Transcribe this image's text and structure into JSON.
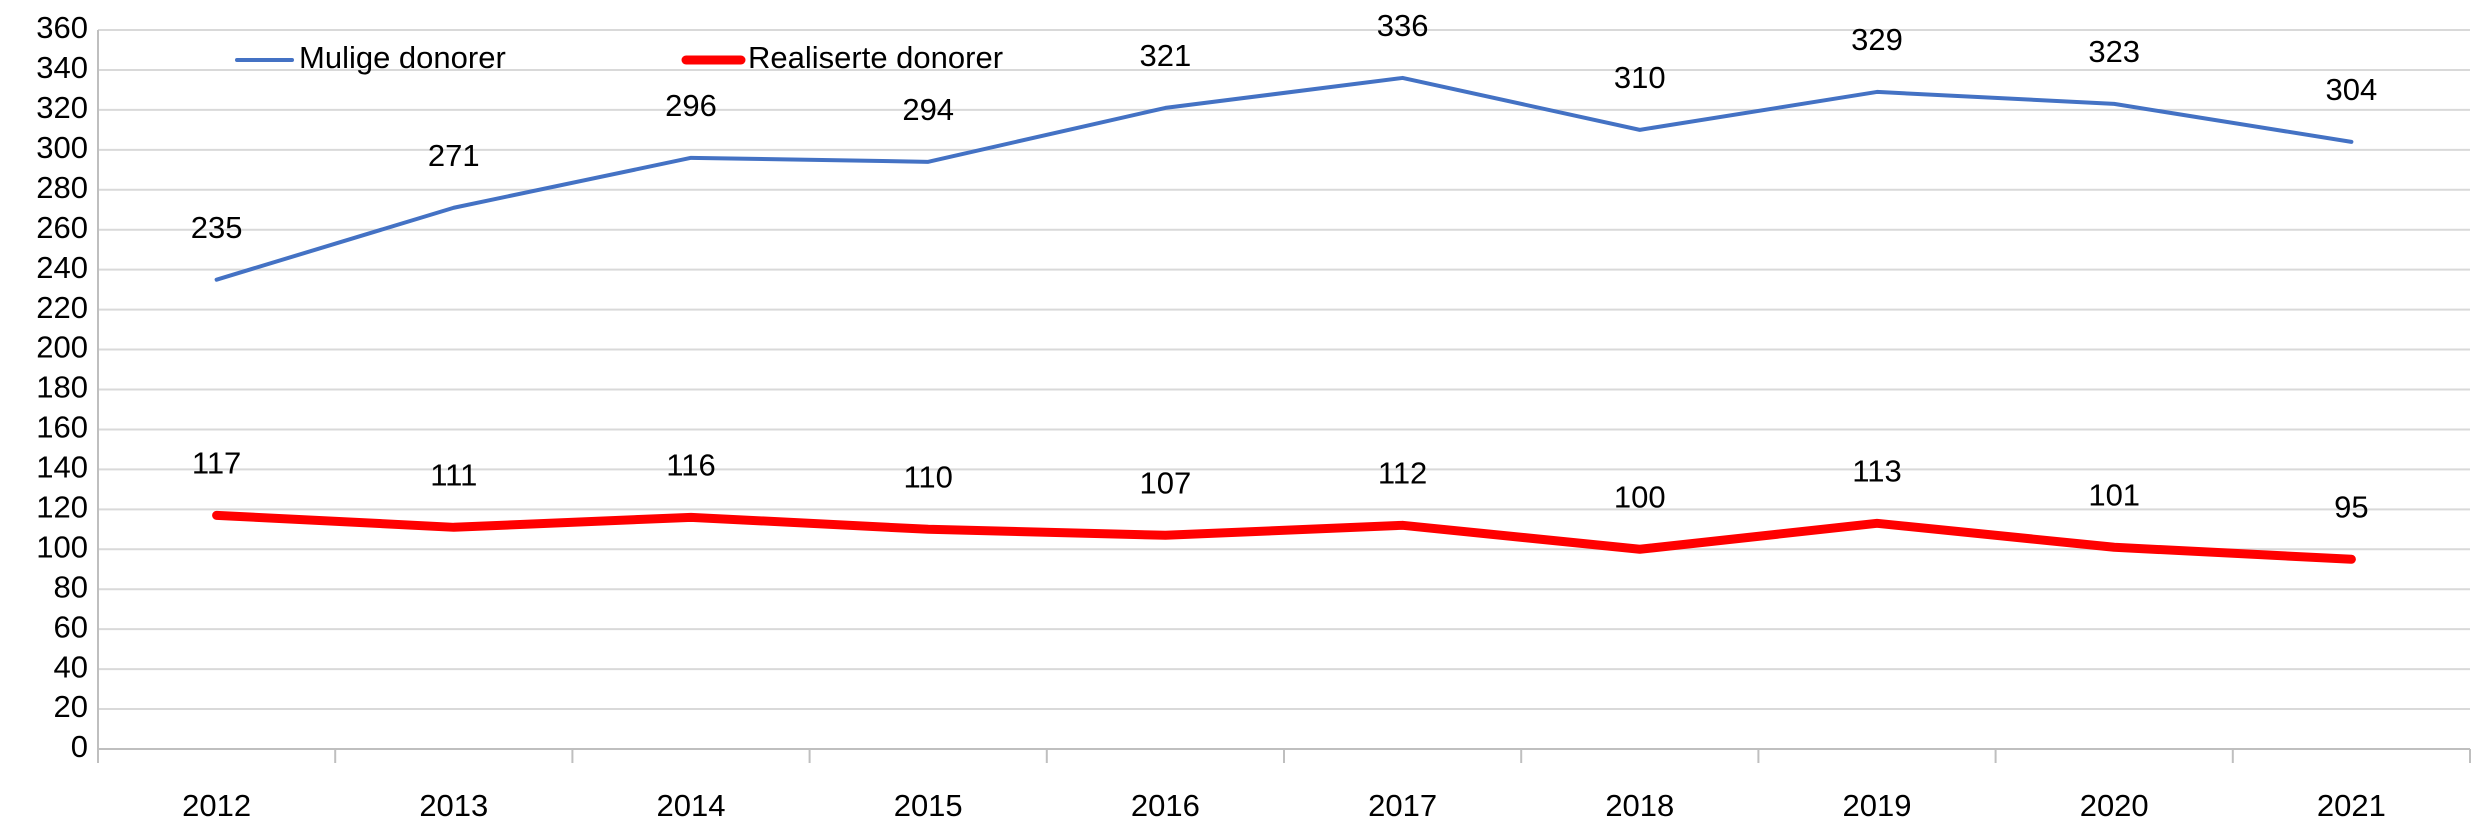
{
  "chart_data": {
    "type": "line",
    "categories": [
      "2012",
      "2013",
      "2014",
      "2015",
      "2016",
      "2017",
      "2018",
      "2019",
      "2020",
      "2021"
    ],
    "series": [
      {
        "name": "Mulige donorer",
        "color": "#4472c4",
        "values": [
          235,
          271,
          296,
          294,
          321,
          336,
          310,
          329,
          323,
          304
        ]
      },
      {
        "name": "Realiserte donorer",
        "color": "#ff0000",
        "values": [
          117,
          111,
          116,
          110,
          107,
          112,
          100,
          113,
          101,
          95
        ]
      }
    ],
    "ylim": [
      0,
      360
    ],
    "yticks": [
      0,
      20,
      40,
      60,
      80,
      100,
      120,
      140,
      160,
      180,
      200,
      220,
      240,
      260,
      280,
      300,
      320,
      340,
      360
    ],
    "grid": true,
    "legend": "top"
  }
}
